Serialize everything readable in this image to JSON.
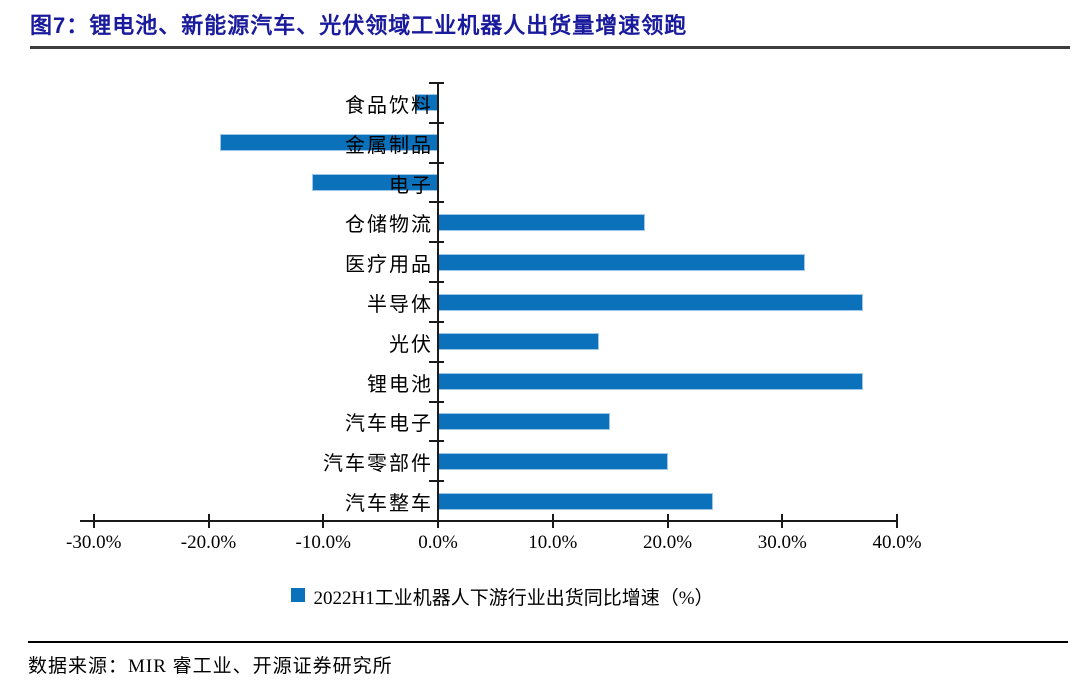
{
  "figure": {
    "title": "图7：锂电池、新能源汽车、光伏领域工业机器人出货量增速领跑"
  },
  "chart_data": {
    "type": "bar",
    "orientation": "horizontal",
    "categories_top_to_bottom": [
      "食品饮料",
      "金属制品",
      "电子",
      "仓储物流",
      "医疗用品",
      "半导体",
      "光伏",
      "锂电池",
      "汽车电子",
      "汽车零部件",
      "汽车整车"
    ],
    "values_pct": [
      -2,
      -19,
      -11,
      18,
      32,
      37,
      14,
      37,
      15,
      20,
      24
    ],
    "series_name": "2022H1工业机器人下游行业出货同比增速（%）",
    "xlim": [
      -30,
      40
    ],
    "x_tick_values": [
      -30,
      -20,
      -10,
      0,
      10,
      20,
      30,
      40
    ],
    "x_tick_labels": [
      "-30.0%",
      "-20.0%",
      "-10.0%",
      "0.0%",
      "10.0%",
      "20.0%",
      "30.0%",
      "40.0%"
    ],
    "grid": false,
    "legend_position": "bottom",
    "bar_color": "#0a71ba"
  },
  "legend": {
    "label": "2022H1工业机器人下游行业出货同比增速（%）"
  },
  "footer": {
    "source": "数据来源：MIR 睿工业、开源证券研究所"
  },
  "colors": {
    "bar": "#0a71ba",
    "bar_border": "#9dc6e8",
    "title": "#1a1a9c",
    "title_rule": "#3d3d3d",
    "axis": "#1a1a1a"
  }
}
